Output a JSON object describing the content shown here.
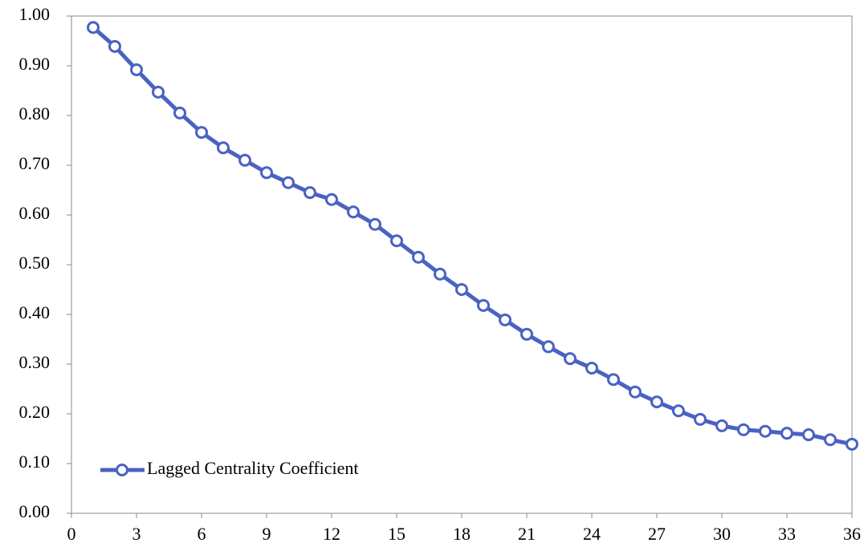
{
  "chart_data": {
    "type": "line",
    "x": [
      1,
      2,
      3,
      4,
      5,
      6,
      7,
      8,
      9,
      10,
      11,
      12,
      13,
      14,
      15,
      16,
      17,
      18,
      19,
      20,
      21,
      22,
      23,
      24,
      25,
      26,
      27,
      28,
      29,
      30,
      31,
      32,
      33,
      34,
      35,
      36
    ],
    "series": [
      {
        "name": "Lagged Centrality Coefficient",
        "color": "#4a62c2",
        "values": [
          0.977,
          0.939,
          0.892,
          0.847,
          0.805,
          0.766,
          0.735,
          0.71,
          0.685,
          0.665,
          0.645,
          0.631,
          0.606,
          0.581,
          0.548,
          0.515,
          0.481,
          0.45,
          0.418,
          0.389,
          0.36,
          0.335,
          0.311,
          0.292,
          0.269,
          0.244,
          0.224,
          0.206,
          0.189,
          0.176,
          0.168,
          0.165,
          0.161,
          0.158,
          0.148,
          0.139
        ]
      }
    ],
    "xlim": [
      0,
      36
    ],
    "xticks": [
      0,
      3,
      6,
      9,
      12,
      15,
      18,
      21,
      24,
      27,
      30,
      33,
      36
    ],
    "ylim": [
      0,
      1
    ],
    "yticks": [
      {
        "value": 0,
        "label": "0.00"
      },
      {
        "value": 0.1,
        "label": "0.10"
      },
      {
        "value": 0.2,
        "label": "0.20"
      },
      {
        "value": 0.3,
        "label": "0.30"
      },
      {
        "value": 0.4,
        "label": "0.40"
      },
      {
        "value": 0.5,
        "label": "0.50"
      },
      {
        "value": 0.6,
        "label": "0.60"
      },
      {
        "value": 0.7,
        "label": "0.70"
      },
      {
        "value": 0.8,
        "label": "0.80"
      },
      {
        "value": 0.9,
        "label": "0.90"
      },
      {
        "value": 1,
        "label": "1.00"
      }
    ],
    "legend": "lower-left"
  }
}
